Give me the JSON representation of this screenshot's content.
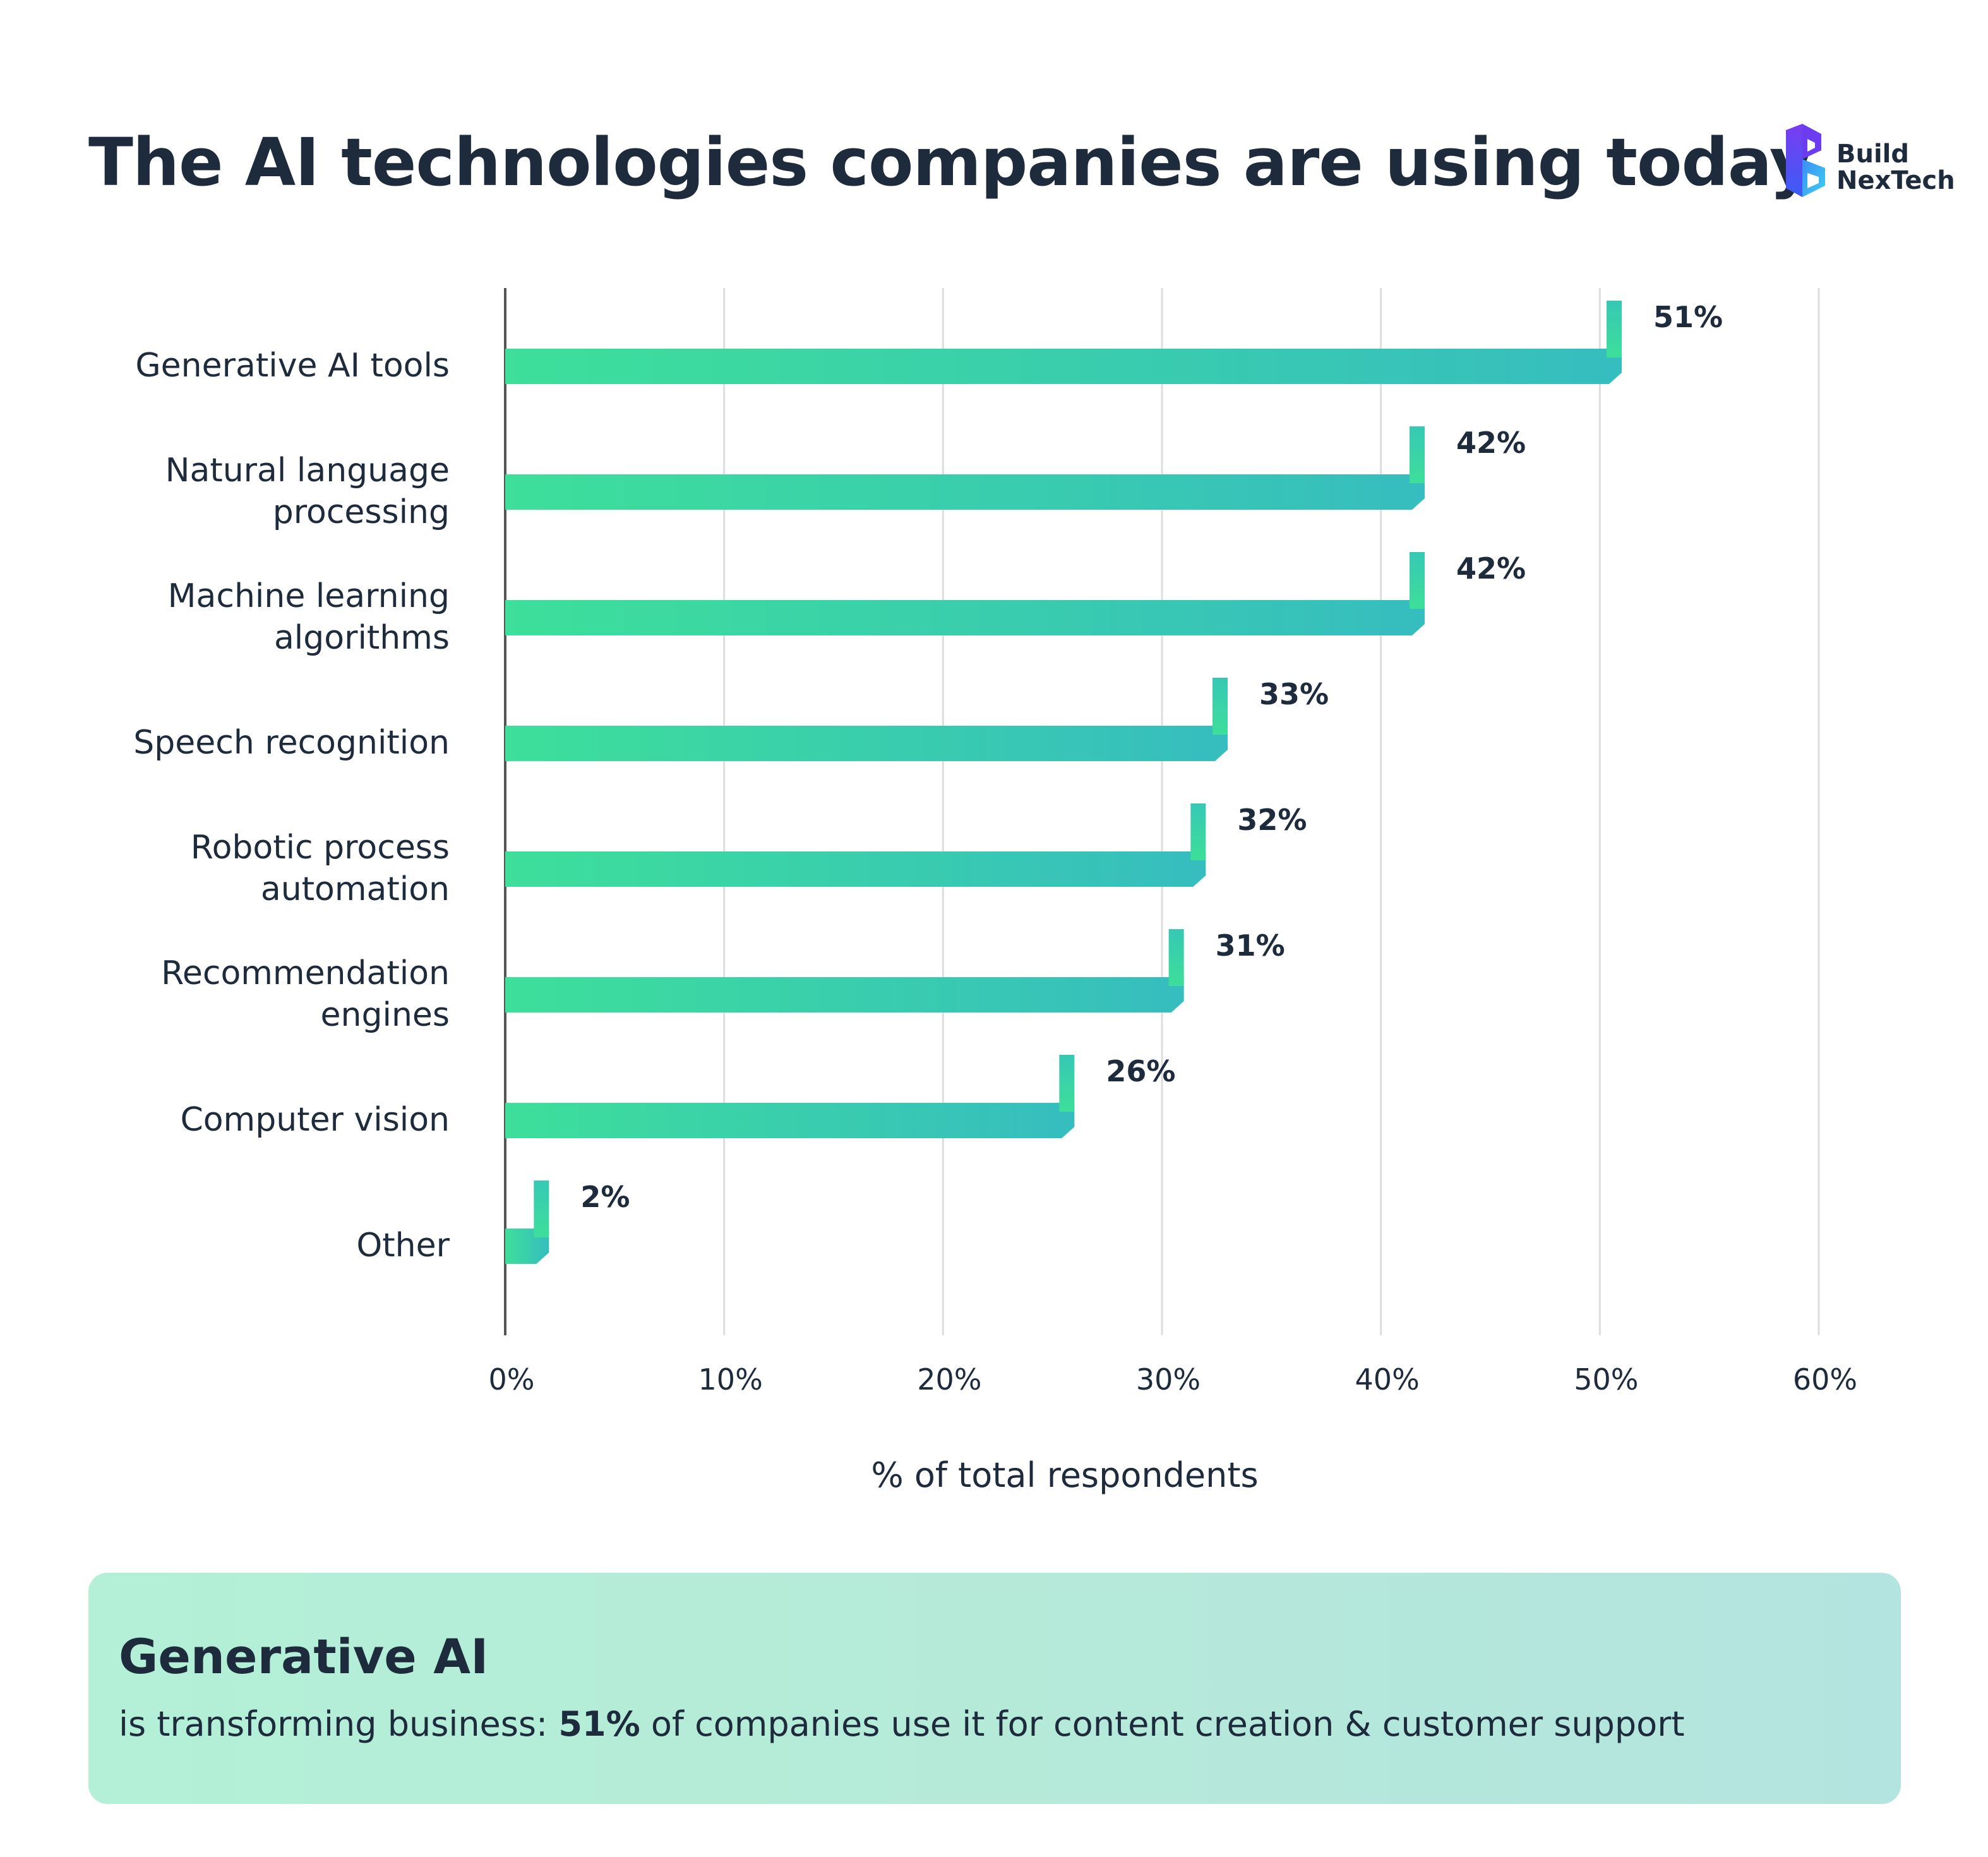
{
  "header": {
    "title": "The AI technologies companies are using today",
    "logo": {
      "line1": "Build",
      "line2": "NexTech",
      "icon": "b-cube-logo-icon",
      "colors": [
        "#7a3cf0",
        "#3a5cf5",
        "#3fd0f0"
      ]
    }
  },
  "chart_data": {
    "type": "bar",
    "orientation": "horizontal",
    "title": "The AI technologies companies are using today",
    "categories": [
      "Generative AI tools",
      "Natural language processing",
      "Machine learning algorithms",
      "Speech recognition",
      "Robotic process automation",
      "Recommendation engines",
      "Computer vision",
      "Other"
    ],
    "category_lines": [
      [
        "Generative AI tools"
      ],
      [
        "Natural language",
        "processing"
      ],
      [
        "Machine learning",
        "algorithms"
      ],
      [
        "Speech recognition"
      ],
      [
        "Robotic process",
        "automation"
      ],
      [
        "Recommendation",
        "engines"
      ],
      [
        "Computer vision"
      ],
      [
        "Other"
      ]
    ],
    "values": [
      51,
      42,
      42,
      33,
      32,
      31,
      26,
      2
    ],
    "data_labels": [
      "51%",
      "42%",
      "42%",
      "33%",
      "32%",
      "31%",
      "26%",
      "2%"
    ],
    "x_ticks": [
      "0%",
      "10%",
      "20%",
      "30%",
      "40%",
      "50%",
      "60%"
    ],
    "xlim": [
      0,
      60
    ],
    "xlabel": "% of total respondents",
    "ylabel": "",
    "grid": "vertical",
    "legend": "none",
    "colors": {
      "bar_start": "#3ddf9a",
      "bar_end": "#36bdbf",
      "grid": "#dddddd",
      "axis": "#555555",
      "text": "#1e2b3c"
    }
  },
  "callout": {
    "heading": "Generative AI",
    "body_prefix": "is transforming business: ",
    "body_highlight": "51%",
    "body_suffix": " of companies use it for content creation & customer support"
  }
}
